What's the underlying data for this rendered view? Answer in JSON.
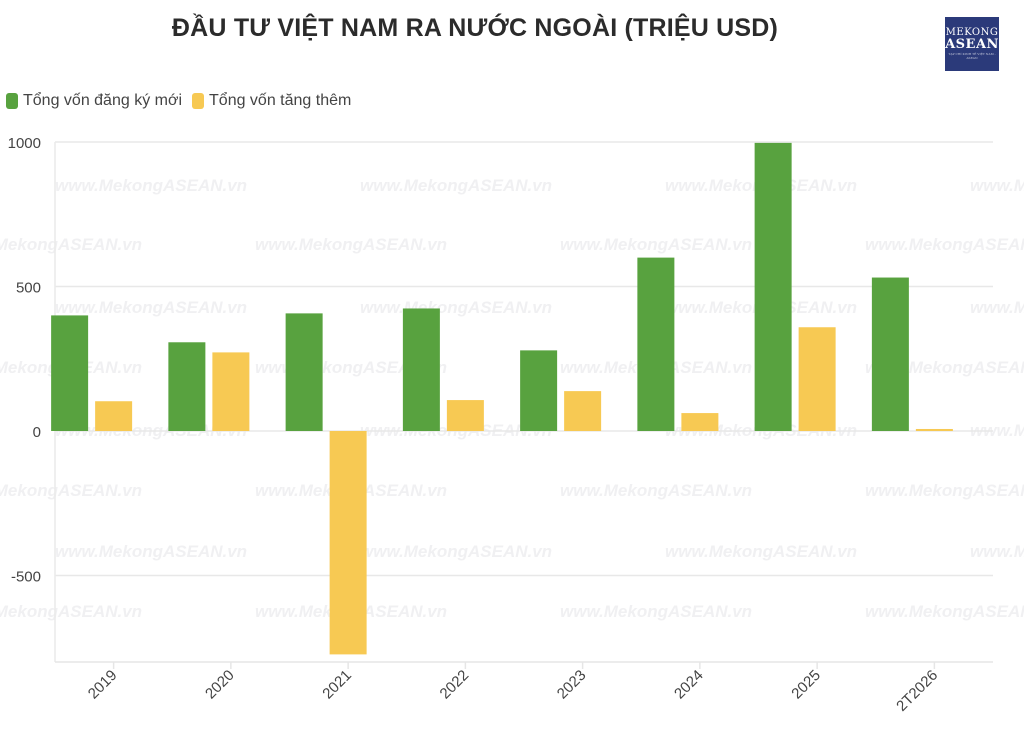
{
  "header": {
    "title": "ĐẦU TƯ VIỆT NAM RA NƯỚC NGOÀI (TRIỆU USD)",
    "logo": {
      "line1": "MEKONG",
      "line2": "ASEAN",
      "line3": "TẠP CHÍ KINH TẾ VIỆT NAM - ASEAN"
    }
  },
  "legend": [
    {
      "label": "Tổng vốn đăng ký mới",
      "color": "#58a23f"
    },
    {
      "label": "Tổng vốn tăng thêm",
      "color": "#f7c953"
    }
  ],
  "watermark": "www.MekongASEAN.vn",
  "chart_data": {
    "type": "bar",
    "title": "ĐẦU TƯ VIỆT NAM RA NƯỚC NGOÀI (TRIỆU USD)",
    "xlabel": "",
    "ylabel": "",
    "categories": [
      "2019",
      "2020",
      "2021",
      "2022",
      "2023",
      "2024",
      "2025",
      "2T2026"
    ],
    "series": [
      {
        "name": "Tổng vốn đăng ký mới",
        "color": "#58a23f",
        "values": [
          400,
          307,
          407,
          424,
          279,
          600,
          997,
          531
        ]
      },
      {
        "name": "Tổng vốn tăng thêm",
        "color": "#f7c953",
        "values": [
          103,
          272,
          -773,
          107,
          138,
          62,
          359,
          7
        ]
      }
    ],
    "yticks": [
      -500,
      0,
      500,
      1000
    ],
    "ylim": [
      -800,
      1000
    ],
    "grid": true,
    "legend_position": "top-left"
  }
}
